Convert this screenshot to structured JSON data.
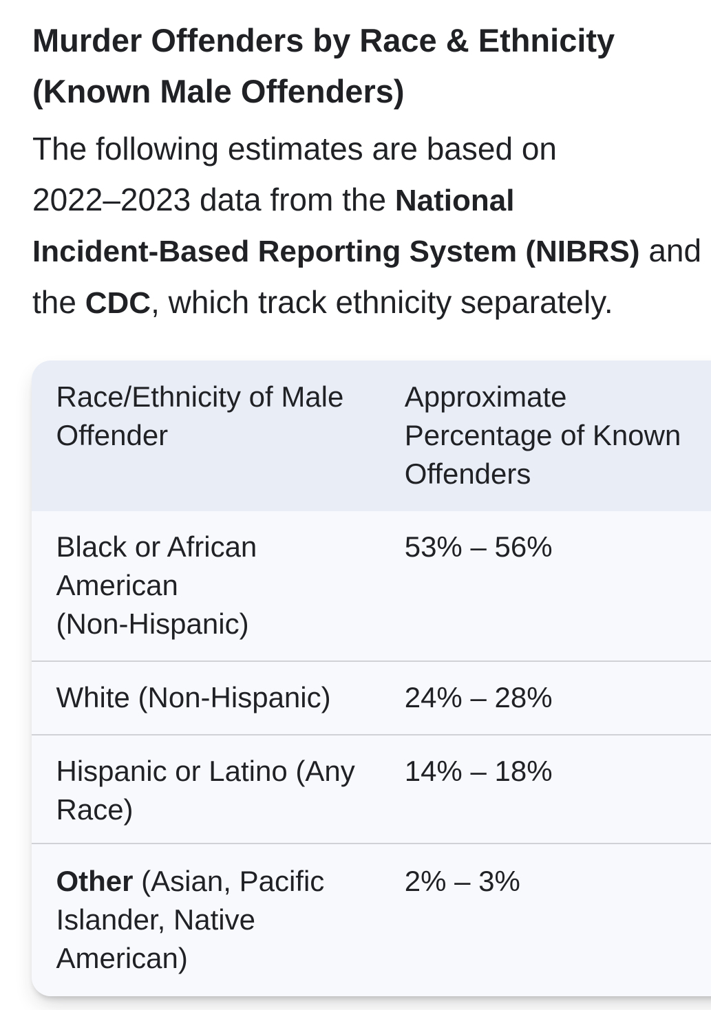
{
  "page": {
    "background": "#ffffff",
    "text_color": "#1f2124"
  },
  "heading": {
    "lines": [
      "Murder Offenders by Race & Ethnicity",
      "(Known Male Offenders)"
    ]
  },
  "paragraph": {
    "lines": [
      [
        {
          "t": "The following estimates are based on"
        }
      ],
      [
        {
          "t": "2022–2023 data from the "
        },
        {
          "t": "National",
          "bold": true
        }
      ],
      [
        {
          "t": "Incident-Based Reporting System (NIBRS)",
          "bold": true
        },
        {
          "t": " and"
        }
      ],
      [
        {
          "t": "the ",
          "bold": false
        },
        {
          "t": "CDC",
          "bold": true
        },
        {
          "t": ", which track ethnicity separately."
        }
      ]
    ]
  },
  "table": {
    "colors": {
      "header_bg": "#e9edf6",
      "body_bg": "#f7f9fc",
      "divider": "#cfd1d6"
    },
    "header": [
      {
        "lines": [
          [
            {
              "t": "Race/Ethnicity of Male"
            }
          ],
          [
            {
              "t": "Offender"
            }
          ]
        ]
      },
      {
        "lines": [
          [
            {
              "t": "Approximate"
            }
          ],
          [
            {
              "t": "Percentage of Known"
            }
          ],
          [
            {
              "t": "Offenders"
            }
          ]
        ]
      }
    ],
    "rows": [
      {
        "race": {
          "lines": [
            [
              {
                "t": "Black or African"
              }
            ],
            [
              {
                "t": "American"
              }
            ],
            [
              {
                "t": "(Non-Hispanic)"
              }
            ]
          ]
        },
        "pct": {
          "lines": [
            [
              {
                "t": "53% – 56%"
              }
            ]
          ]
        }
      },
      {
        "race": {
          "lines": [
            [
              {
                "t": "White (Non-Hispanic)"
              }
            ]
          ]
        },
        "pct": {
          "lines": [
            [
              {
                "t": "24% – 28%"
              }
            ]
          ]
        }
      },
      {
        "race": {
          "lines": [
            [
              {
                "t": "Hispanic or Latino (Any"
              }
            ],
            [
              {
                "t": "Race)"
              }
            ]
          ]
        },
        "pct": {
          "lines": [
            [
              {
                "t": "14% – 18%"
              }
            ]
          ]
        }
      },
      {
        "race": {
          "lines": [
            [
              {
                "t": "Other",
                "bold": true
              },
              {
                "t": " (Asian, Pacific"
              }
            ],
            [
              {
                "t": "Islander, Native"
              }
            ],
            [
              {
                "t": "American)"
              }
            ]
          ]
        },
        "pct": {
          "lines": [
            [
              {
                "t": "2% – 3%"
              }
            ]
          ]
        }
      }
    ]
  }
}
